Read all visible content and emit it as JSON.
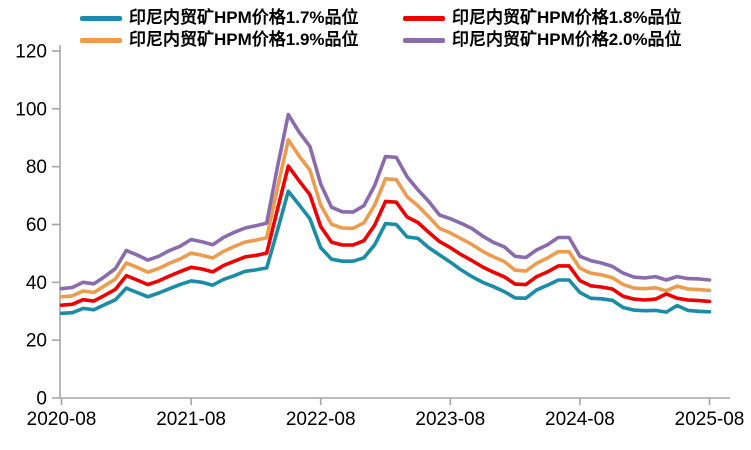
{
  "chart_data": {
    "type": "line",
    "title": "",
    "x_start": "2020-08",
    "x_end": "2025-08",
    "x_interval": "monthly",
    "x_tick_labels": [
      "2020-08",
      "2021-08",
      "2022-08",
      "2023-08",
      "2024-08",
      "2025-08"
    ],
    "y_ticks": [
      "0",
      "20",
      "40",
      "60",
      "80",
      "100",
      "120"
    ],
    "ylim": [
      0,
      120
    ],
    "grid": false,
    "legend_position": "top",
    "axis_color": "#a6a6a6",
    "text_color": "#000000",
    "background_color": "#ffffff",
    "series": [
      {
        "name": "印尼内贸矿HPM价格1.7%品位",
        "color": "#1b8ca8",
        "values": [
          29.3,
          29.5,
          31.0,
          30.5,
          32.3,
          34.0,
          38.0,
          36.5,
          35.0,
          36.3,
          37.8,
          39.3,
          40.5,
          40.0,
          39.0,
          41.0,
          42.3,
          43.8,
          44.3,
          45.0,
          58.0,
          71.5,
          66.8,
          62.0,
          52.0,
          48.0,
          47.3,
          47.3,
          48.5,
          53.0,
          60.3,
          60.0,
          55.7,
          55.2,
          52.0,
          49.5,
          47.0,
          44.3,
          42.0,
          40.0,
          38.5,
          36.8,
          34.6,
          34.5,
          37.4,
          39.0,
          40.8,
          40.8,
          36.5,
          34.5,
          34.3,
          33.8,
          31.3,
          30.4,
          30.2,
          30.3,
          29.7,
          32.0,
          30.3,
          30.0,
          29.8
        ]
      },
      {
        "name": "印尼内贸矿HPM价格1.8%品位",
        "color": "#ec0000",
        "values": [
          32.1,
          32.4,
          34.0,
          33.5,
          35.5,
          37.6,
          42.3,
          40.8,
          39.2,
          40.5,
          42.2,
          43.7,
          45.2,
          44.6,
          43.6,
          45.8,
          47.3,
          48.8,
          49.3,
          50.1,
          65.3,
          80.2,
          75.1,
          70.3,
          59.3,
          53.9,
          52.9,
          52.9,
          54.4,
          59.8,
          68.0,
          67.7,
          62.6,
          60.7,
          57.3,
          54.1,
          52.0,
          49.6,
          47.5,
          45.3,
          43.5,
          41.9,
          39.4,
          39.2,
          42.0,
          43.6,
          45.7,
          45.7,
          40.6,
          38.8,
          38.4,
          37.7,
          35.2,
          34.2,
          33.9,
          34.2,
          36.0,
          34.5,
          33.9,
          33.7,
          33.4
        ]
      },
      {
        "name": "印尼内贸矿HPM价格1.9%品位",
        "color": "#ed9c4f",
        "values": [
          35.0,
          35.3,
          37.0,
          36.5,
          38.8,
          41.2,
          46.7,
          45.2,
          43.5,
          44.8,
          46.6,
          48.1,
          50.1,
          49.4,
          48.4,
          50.7,
          52.4,
          53.9,
          54.6,
          55.4,
          72.7,
          89.3,
          83.7,
          78.8,
          66.7,
          60.1,
          58.8,
          58.7,
          60.6,
          66.7,
          75.8,
          75.5,
          69.6,
          66.5,
          62.7,
          58.7,
          57.1,
          55.1,
          53.1,
          50.7,
          48.8,
          47.2,
          44.2,
          43.9,
          46.6,
          48.4,
          50.6,
          50.6,
          44.9,
          43.2,
          42.6,
          41.6,
          39.3,
          38.0,
          37.8,
          38.1,
          37.1,
          38.7,
          37.7,
          37.5,
          37.2
        ]
      },
      {
        "name": "印尼内贸矿HPM价格2.0%品位",
        "color": "#8a6bac",
        "values": [
          37.8,
          38.2,
          40.0,
          39.5,
          42.0,
          44.8,
          51.0,
          49.5,
          47.7,
          49.0,
          51.0,
          52.5,
          54.8,
          54.0,
          53.0,
          55.5,
          57.3,
          58.8,
          59.6,
          60.5,
          80.0,
          98.0,
          92.0,
          87.0,
          74.0,
          66.0,
          64.4,
          64.3,
          66.5,
          73.5,
          83.5,
          83.2,
          76.5,
          72.0,
          68.0,
          63.3,
          62.0,
          60.4,
          58.6,
          56.0,
          53.8,
          52.3,
          49.0,
          48.6,
          51.2,
          53.0,
          55.5,
          55.5,
          49.0,
          47.5,
          46.7,
          45.5,
          43.2,
          41.8,
          41.5,
          42.0,
          40.8,
          42.0,
          41.3,
          41.2,
          40.8
        ]
      }
    ]
  }
}
